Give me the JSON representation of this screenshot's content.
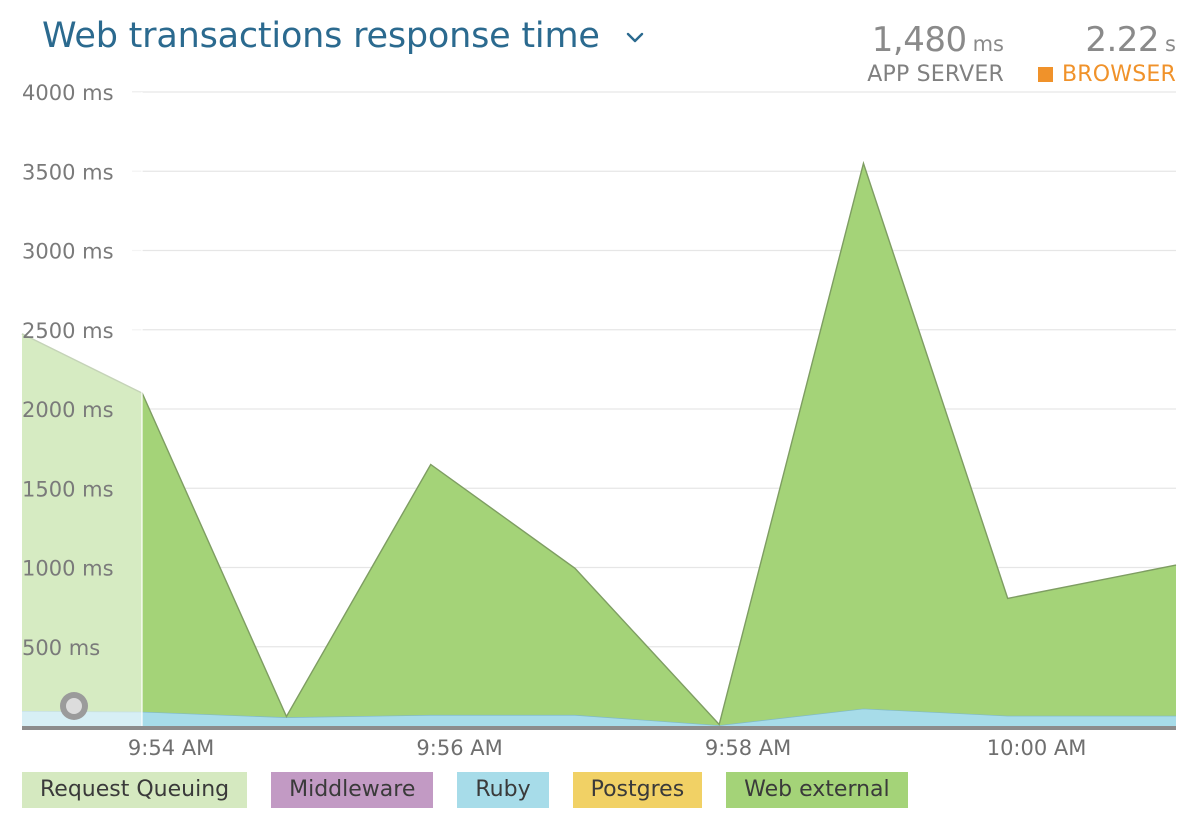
{
  "header": {
    "title": "Web transactions response time",
    "app_server": {
      "value": "1,480",
      "unit": "ms",
      "label": "APP SERVER"
    },
    "browser": {
      "value": "2.22",
      "unit": "s",
      "label": "BROWSER",
      "color": "#f0922a"
    }
  },
  "chart_data": {
    "type": "area",
    "title": "Web transactions response time",
    "ylim": [
      0,
      4000
    ],
    "y_ticks": [
      500,
      1000,
      1500,
      2000,
      2500,
      3000,
      3500,
      4000
    ],
    "y_tick_labels": [
      "500 ms",
      "1000 ms",
      "1500 ms",
      "2000 ms",
      "2500 ms",
      "3000 ms",
      "3500 ms",
      "4000 ms"
    ],
    "x_range": [
      "9:52:58 AM",
      "10:00:58 AM"
    ],
    "x_ticks": [
      "9:54 AM",
      "9:56 AM",
      "9:58 AM",
      "10:00 AM"
    ],
    "x": [
      "9:52:58 AM",
      "9:53:48 AM",
      "9:54:48 AM",
      "9:55:48 AM",
      "9:56:48 AM",
      "9:57:48 AM",
      "9:58:48 AM",
      "9:59:48 AM",
      "10:00:58 AM"
    ],
    "grid": true,
    "stacked": true,
    "legend_position": "bottom",
    "series": [
      {
        "name": "Ruby",
        "color": "#a7dce9",
        "values": [
          95,
          90,
          55,
          70,
          70,
          5,
          110,
          65,
          65
        ]
      },
      {
        "name": "Web external",
        "color": "#a4d378",
        "values": [
          2380,
          2010,
          5,
          1580,
          925,
          5,
          3440,
          740,
          950
        ]
      }
    ],
    "selection": {
      "from": "9:52:58 AM",
      "to": "9:53:48 AM"
    }
  },
  "legend": [
    {
      "name": "Request Queuing",
      "color": "#d5e9c0"
    },
    {
      "name": "Middleware",
      "color": "#c29ac4"
    },
    {
      "name": "Ruby",
      "color": "#a7dce9"
    },
    {
      "name": "Postgres",
      "color": "#f1d165"
    },
    {
      "name": "Web external",
      "color": "#a4d378"
    }
  ]
}
